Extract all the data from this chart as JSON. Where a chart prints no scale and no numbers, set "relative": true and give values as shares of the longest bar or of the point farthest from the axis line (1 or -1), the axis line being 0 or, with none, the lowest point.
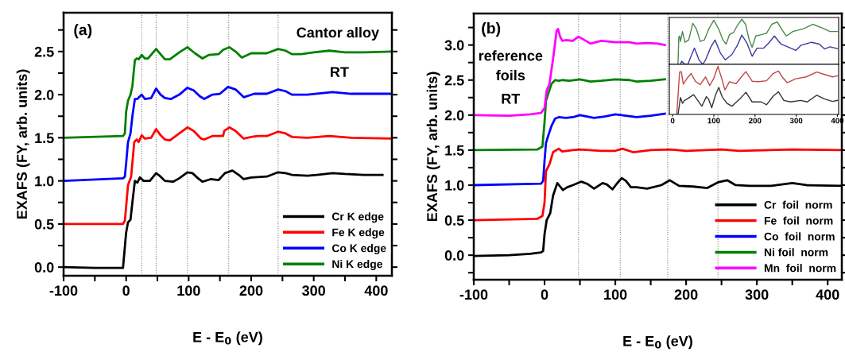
{
  "chart_data": [
    {
      "type": "line",
      "xlabel": "E - E$_{0}$ (eV)",
      "ylabel": "EXAFS (FY, arb. units)",
      "xlim": [
        -100,
        425
      ],
      "ylim": [
        -0.1,
        2.95
      ],
      "xticks": [
        -100,
        {
          "value": -50,
          "label": null
        },
        0,
        {
          "value": 50,
          "label": null
        },
        100,
        {
          "value": 150,
          "label": null
        },
        200,
        {
          "value": 250,
          "label": null
        },
        300,
        {
          "value": 350,
          "label": null
        },
        400
      ],
      "yticks": [
        {
          "value": 0,
          "label": "0.0"
        },
        {
          "value": 0.25,
          "label": null
        },
        0.5,
        {
          "value": 0.75,
          "label": null
        },
        {
          "value": 1,
          "label": "1.0"
        },
        {
          "value": 1.25,
          "label": null
        },
        1.5,
        {
          "value": 1.75,
          "label": null
        },
        {
          "value": 2,
          "label": "2.0"
        },
        {
          "value": 2.25,
          "label": null
        },
        2.5,
        {
          "value": 2.75,
          "label": null
        }
      ],
      "annotations": [
        "(a)",
        "Cantor alloy",
        "RT"
      ],
      "legend": "lower right",
      "grid": false,
      "ref_lines": [
        {
          "axis": "x",
          "value": 25,
          "color": "#808080",
          "line_style": "dotted"
        },
        {
          "axis": "x",
          "value": 48,
          "color": "#808080",
          "line_style": "dotted"
        },
        {
          "axis": "x",
          "value": 98,
          "color": "#808080",
          "line_style": "dotted"
        },
        {
          "axis": "x",
          "value": 164,
          "color": "#808080",
          "line_style": "dotted"
        },
        {
          "axis": "x",
          "value": 243,
          "color": "#808080",
          "line_style": "dotted"
        }
      ],
      "series": [
        {
          "name": "Cr K edge",
          "color": "#000000",
          "x": [
            -100,
            -50,
            -5,
            0,
            3,
            7,
            10,
            14,
            18,
            22,
            28,
            38,
            48,
            55,
            62,
            75,
            85,
            98,
            106,
            115,
            122,
            135,
            148,
            158,
            170,
            180,
            188,
            200,
            225,
            243,
            255,
            265,
            290,
            305,
            330,
            350,
            380,
            410
          ],
          "values": [
            0.0,
            -0.01,
            -0.01,
            0.4,
            0.52,
            0.55,
            0.75,
            1.0,
            0.98,
            1.04,
            1.0,
            1.0,
            1.09,
            1.05,
            1.0,
            0.99,
            1.03,
            1.1,
            1.09,
            1.03,
            0.99,
            1.02,
            1.01,
            1.09,
            1.12,
            1.07,
            1.02,
            1.04,
            1.05,
            1.1,
            1.09,
            1.07,
            1.06,
            1.07,
            1.09,
            1.08,
            1.07,
            1.07
          ]
        },
        {
          "name": "Fe K edge",
          "color": "#ff0000",
          "x": [
            -100,
            -5,
            -2,
            0,
            3,
            8,
            13,
            17,
            20,
            25,
            30,
            40,
            48,
            55,
            62,
            70,
            85,
            98,
            108,
            120,
            125,
            138,
            155,
            157,
            165,
            175,
            188,
            200,
            210,
            225,
            243,
            255,
            265,
            290,
            325,
            360,
            425
          ],
          "values": [
            0.5,
            0.5,
            0.54,
            0.7,
            0.95,
            1.05,
            1.45,
            1.48,
            1.45,
            1.53,
            1.49,
            1.5,
            1.6,
            1.53,
            1.48,
            1.47,
            1.55,
            1.62,
            1.58,
            1.49,
            1.48,
            1.52,
            1.52,
            1.58,
            1.62,
            1.58,
            1.49,
            1.51,
            1.52,
            1.52,
            1.57,
            1.55,
            1.51,
            1.5,
            1.52,
            1.5,
            1.49
          ]
        },
        {
          "name": "Co K edge",
          "color": "#0000ff",
          "x": [
            -100,
            -5,
            -2,
            0,
            3,
            7,
            10,
            14,
            18,
            22,
            25,
            30,
            40,
            48,
            55,
            62,
            72,
            85,
            98,
            108,
            118,
            125,
            138,
            150,
            163,
            175,
            188,
            205,
            225,
            243,
            255,
            265,
            290,
            330,
            360,
            425
          ],
          "values": [
            1.0,
            1.03,
            1.05,
            1.2,
            1.45,
            1.55,
            1.75,
            1.95,
            1.95,
            1.98,
            2.0,
            1.95,
            1.96,
            2.07,
            2.0,
            1.96,
            1.95,
            2.0,
            2.08,
            2.05,
            1.98,
            1.95,
            2.0,
            2.01,
            2.09,
            2.06,
            1.97,
            2.01,
            2.01,
            2.06,
            2.04,
            2.0,
            2.0,
            2.03,
            2.01,
            2.01
          ]
        },
        {
          "name": "Ni K edge",
          "color": "#008000",
          "x": [
            -100,
            -5,
            -2,
            0,
            3,
            7,
            10,
            14,
            17,
            20,
            25,
            30,
            35,
            48,
            55,
            62,
            70,
            85,
            98,
            110,
            122,
            132,
            148,
            155,
            165,
            175,
            185,
            200,
            225,
            243,
            255,
            265,
            280,
            300,
            325,
            350,
            380,
            425
          ],
          "values": [
            1.5,
            1.52,
            1.55,
            1.8,
            1.93,
            2.0,
            2.1,
            2.4,
            2.42,
            2.41,
            2.46,
            2.42,
            2.42,
            2.53,
            2.47,
            2.41,
            2.41,
            2.49,
            2.55,
            2.48,
            2.42,
            2.46,
            2.47,
            2.52,
            2.55,
            2.5,
            2.43,
            2.48,
            2.48,
            2.53,
            2.51,
            2.47,
            2.47,
            2.49,
            2.51,
            2.49,
            2.49,
            2.5
          ]
        }
      ]
    },
    {
      "type": "line",
      "xlabel": "E - E$_{0}$ (eV)",
      "ylabel": "EXAFS (FY, arb. units)",
      "xlim": [
        -100,
        420
      ],
      "ylim": [
        -0.35,
        3.45
      ],
      "xticks": [
        -100,
        {
          "value": -50,
          "label": null
        },
        0,
        {
          "value": 50,
          "label": null
        },
        100,
        {
          "value": 150,
          "label": null
        },
        200,
        {
          "value": 250,
          "label": null
        },
        300,
        {
          "value": 350,
          "label": null
        },
        400
      ],
      "yticks": [
        {
          "value": -0.25,
          "label": null
        },
        {
          "value": 0,
          "label": "0.0"
        },
        {
          "value": 0.25,
          "label": null
        },
        0.5,
        {
          "value": 0.75,
          "label": null
        },
        {
          "value": 1,
          "label": "1.0"
        },
        {
          "value": 1.25,
          "label": null
        },
        1.5,
        {
          "value": 1.75,
          "label": null
        },
        {
          "value": 2,
          "label": "2.0"
        },
        {
          "value": 2.25,
          "label": null
        },
        2.5,
        {
          "value": 2.75,
          "label": null
        },
        {
          "value": 3,
          "label": "3.0"
        },
        {
          "value": 3.25,
          "label": null
        }
      ],
      "annotations": [
        "(b)",
        "reference\nfoils",
        "RT"
      ],
      "legend": "lower right",
      "grid": false,
      "ref_lines": [
        {
          "axis": "x",
          "value": 48,
          "color": "#808080",
          "line_style": "dotted"
        },
        {
          "axis": "x",
          "value": 107,
          "color": "#808080",
          "line_style": "dotted"
        },
        {
          "axis": "x",
          "value": 174,
          "color": "#808080",
          "line_style": "dotted"
        },
        {
          "axis": "x",
          "value": 245,
          "color": "#808080",
          "line_style": "dotted"
        }
      ],
      "series": [
        {
          "name": "Cr  foil  norm",
          "color": "#000000",
          "x": [
            -100,
            -50,
            -20,
            -5,
            -2,
            0,
            3,
            8,
            12,
            18,
            22,
            26,
            32,
            40,
            52,
            60,
            70,
            82,
            88,
            96,
            102,
            109,
            115,
            122,
            130,
            145,
            165,
            177,
            190,
            210,
            230,
            245,
            258,
            270,
            290,
            320,
            350,
            370,
            420
          ],
          "values": [
            -0.01,
            0.0,
            0.02,
            0.04,
            0.06,
            0.3,
            0.5,
            0.6,
            0.85,
            1.03,
            0.98,
            0.93,
            0.97,
            1.0,
            1.05,
            1.02,
            0.95,
            1.03,
            1.01,
            0.94,
            1.02,
            1.1,
            1.06,
            0.97,
            0.97,
            0.95,
            1.0,
            1.07,
            0.99,
            0.98,
            0.96,
            1.04,
            1.07,
            1.0,
            0.99,
            0.99,
            1.03,
            1.0,
            0.99
          ]
        },
        {
          "name": "Fe  foil  norm",
          "color": "#ff0000",
          "x": [
            -100,
            -10,
            -3,
            0,
            2,
            7,
            12,
            20,
            25,
            40,
            50,
            80,
            100,
            110,
            125,
            150,
            178,
            200,
            250,
            275,
            350,
            420
          ],
          "values": [
            0.5,
            0.52,
            0.56,
            0.75,
            1.2,
            1.3,
            1.47,
            1.52,
            1.48,
            1.5,
            1.51,
            1.49,
            1.49,
            1.52,
            1.47,
            1.5,
            1.51,
            1.49,
            1.51,
            1.49,
            1.51,
            1.5
          ]
        },
        {
          "name": "Co  foil  norm",
          "color": "#0000ff",
          "x": [
            -100,
            -5,
            -2,
            0,
            2,
            5,
            10,
            15,
            20,
            30,
            40,
            50,
            70,
            85,
            100,
            115,
            130,
            150,
            170
          ],
          "values": [
            1.0,
            1.02,
            1.06,
            1.35,
            1.6,
            1.7,
            1.85,
            1.95,
            1.97,
            1.96,
            1.97,
            2.0,
            1.96,
            1.98,
            2.01,
            1.99,
            1.97,
            1.99,
            2.02
          ]
        },
        {
          "name": "Ni foil  norm",
          "color": "#008000",
          "x": [
            -100,
            -10,
            -3,
            0,
            2,
            5,
            10,
            15,
            20,
            25,
            35,
            50,
            65,
            80,
            100,
            120,
            130,
            150,
            170
          ],
          "values": [
            1.5,
            1.51,
            1.55,
            1.9,
            2.2,
            2.3,
            2.45,
            2.5,
            2.49,
            2.5,
            2.49,
            2.51,
            2.48,
            2.49,
            2.51,
            2.5,
            2.48,
            2.49,
            2.51
          ]
        },
        {
          "name": "Mn  foil  norm",
          "color": "#ff00ff",
          "x": [
            -100,
            -50,
            -20,
            -5,
            0,
            3,
            7,
            12,
            17,
            19,
            22,
            25,
            30,
            40,
            48,
            55,
            65,
            80,
            100,
            120,
            130,
            145,
            160,
            170
          ],
          "values": [
            2.0,
            1.99,
            2.01,
            2.03,
            2.1,
            2.35,
            2.45,
            2.8,
            3.2,
            3.23,
            3.12,
            3.06,
            3.07,
            3.06,
            3.12,
            3.08,
            3.02,
            3.06,
            3.04,
            3.04,
            3.02,
            3.03,
            3.02,
            3.0
          ]
        }
      ]
    },
    {
      "type": "line",
      "relative": true,
      "xlim": [
        -8,
        403
      ],
      "xticks": [
        0,
        100,
        200,
        300,
        400
      ],
      "tick_labels": false,
      "grid": false,
      "series": [
        {
          "color": "#4a8a4a",
          "x": [
            13,
            15,
            17,
            19,
            24,
            30,
            39,
            49,
            58,
            67,
            77,
            88,
            100,
            112,
            122,
            130,
            138,
            148,
            157,
            168,
            177,
            186,
            193,
            202,
            215,
            228,
            241,
            254,
            266,
            276,
            292,
            318,
            340,
            363,
            382,
            400
          ],
          "values": [
            0,
            0.6,
            0.63,
            0.51,
            0.73,
            0.49,
            0.54,
            0.91,
            0.78,
            0.51,
            0.54,
            0.79,
            0.98,
            0.78,
            0.54,
            0.45,
            0.66,
            0.71,
            0.86,
            1.0,
            0.89,
            0.54,
            0.38,
            0.63,
            0.66,
            0.69,
            0.89,
            0.94,
            0.76,
            0.63,
            0.73,
            0.79,
            0.89,
            0.81,
            0.73,
            0.73
          ]
        },
        {
          "color": "#3a3aa0",
          "x": [
            19,
            22,
            29,
            37,
            45,
            53,
            64,
            73,
            80,
            93,
            103,
            116,
            128,
            144,
            157,
            168,
            180,
            193,
            205,
            221,
            234,
            247,
            263,
            279,
            299,
            311,
            337,
            356,
            369,
            382,
            400
          ],
          "values": [
            0,
            0.07,
            0.01,
            0,
            0.19,
            0.36,
            0.1,
            0,
            0.1,
            0.39,
            0.54,
            0.25,
            0.1,
            0.22,
            0.42,
            0.65,
            0.48,
            0.18,
            0.36,
            0.36,
            0.48,
            0.63,
            0.45,
            0.39,
            0.31,
            0.42,
            0.49,
            0.45,
            0.34,
            0.39,
            0.35
          ]
        }
      ]
    },
    {
      "type": "line",
      "relative": true,
      "xlim": [
        -8,
        403
      ],
      "xticks": [
        0,
        100,
        200,
        300,
        400
      ],
      "tick_labels": "x",
      "grid": false,
      "series": [
        {
          "color": "#c04848",
          "x": [
            10,
            17,
            21,
            26,
            35,
            45,
            55,
            67,
            80,
            90,
            100,
            110,
            119,
            127,
            138,
            154,
            167,
            178,
            193,
            209,
            228,
            244,
            257,
            266,
            278,
            299,
            324,
            350,
            369,
            388,
            400
          ],
          "values": [
            0,
            0.88,
            0.89,
            0.63,
            0.75,
            0.85,
            0.69,
            0.62,
            0.78,
            0.6,
            0.75,
            1.0,
            0.75,
            0.51,
            0.68,
            0.64,
            0.78,
            0.89,
            0.69,
            0.68,
            0.7,
            0.85,
            0.9,
            0.78,
            0.66,
            0.74,
            0.78,
            0.88,
            0.83,
            0.78,
            0.8
          ]
        },
        {
          "color": "#333333",
          "x": [
            13,
            19,
            24,
            29,
            35,
            51,
            71,
            82,
            87,
            95,
            104,
            112,
            120,
            132,
            144,
            164,
            178,
            193,
            215,
            228,
            244,
            257,
            270,
            286,
            311,
            327,
            350,
            369,
            388,
            400
          ],
          "values": [
            0,
            0.35,
            0.23,
            0.29,
            0.32,
            0.41,
            0.17,
            0.37,
            0.32,
            0.14,
            0.4,
            0.56,
            0.37,
            0.23,
            0.17,
            0.33,
            0.46,
            0.26,
            0.26,
            0.2,
            0.38,
            0.47,
            0.29,
            0.26,
            0.29,
            0.26,
            0.4,
            0.32,
            0.27,
            0.29
          ]
        }
      ]
    }
  ]
}
